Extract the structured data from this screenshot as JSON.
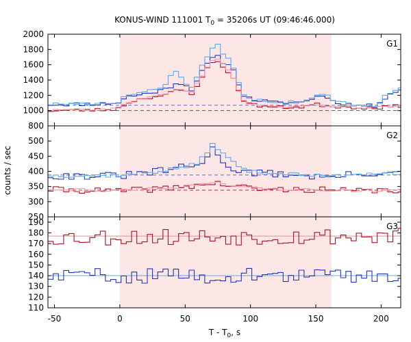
{
  "chart_data": {
    "type": "line",
    "title_main": "KONUS-WIND 111001 T",
    "title_sub": "0",
    "title_rest": " = 35206s UT (09:46:46.000)",
    "xlabel_main": "T - T",
    "xlabel_sub": "0",
    "xlabel_rest": ", s",
    "ylabel": "counts / sec",
    "xlim": [
      -55,
      215
    ],
    "xticks": [
      -50,
      0,
      50,
      100,
      150,
      200
    ],
    "shaded_interval": [
      0,
      162
    ],
    "colors": {
      "blue": "#2233bb",
      "red": "#aa1122",
      "lightblue": "#55aaee",
      "pink": "#ee99aa",
      "shade": "#fde6e6",
      "bg_blue": "#5566ee",
      "bg_red": "#cc2233",
      "g3_red_fit": "#ee8899",
      "g3_blue_fit": "#66aadd"
    },
    "panels": [
      {
        "label": "G1",
        "ylim": [
          800,
          2000
        ],
        "yticks": [
          800,
          1000,
          1200,
          1400,
          1600,
          1800,
          2000
        ],
        "background": {
          "blue": 1070,
          "red": 1000
        },
        "series": [
          {
            "color": "blue",
            "knots": [
              [
                -55,
                1080
              ],
              [
                -10,
                1090
              ],
              [
                0,
                1110
              ],
              [
                5,
                1180
              ],
              [
                20,
                1220
              ],
              [
                35,
                1280
              ],
              [
                45,
                1380
              ],
              [
                55,
                1280
              ],
              [
                62,
                1480
              ],
              [
                70,
                1680
              ],
              [
                75,
                1700
              ],
              [
                80,
                1620
              ],
              [
                85,
                1600
              ],
              [
                90,
                1400
              ],
              [
                95,
                1200
              ],
              [
                100,
                1150
              ],
              [
                120,
                1100
              ],
              [
                140,
                1110
              ],
              [
                150,
                1180
              ],
              [
                158,
                1200
              ],
              [
                163,
                1120
              ],
              [
                180,
                1070
              ],
              [
                195,
                1060
              ],
              [
                205,
                1200
              ],
              [
                215,
                1280
              ]
            ],
            "noise": 25,
            "step": 4,
            "seed": 11
          },
          {
            "color": "lightblue",
            "knots": [
              [
                -55,
                1085
              ],
              [
                -10,
                1095
              ],
              [
                0,
                1115
              ],
              [
                5,
                1200
              ],
              [
                20,
                1250
              ],
              [
                35,
                1330
              ],
              [
                42,
                1560
              ],
              [
                48,
                1400
              ],
              [
                55,
                1300
              ],
              [
                62,
                1560
              ],
              [
                70,
                1800
              ],
              [
                75,
                1860
              ],
              [
                80,
                1700
              ],
              [
                85,
                1660
              ],
              [
                90,
                1420
              ],
              [
                95,
                1220
              ],
              [
                100,
                1160
              ],
              [
                120,
                1110
              ],
              [
                140,
                1115
              ],
              [
                150,
                1190
              ],
              [
                158,
                1210
              ],
              [
                163,
                1130
              ],
              [
                180,
                1075
              ],
              [
                195,
                1065
              ],
              [
                205,
                1210
              ],
              [
                215,
                1290
              ]
            ],
            "noise": 20,
            "step": 4,
            "seed": 17
          },
          {
            "color": "red",
            "knots": [
              [
                -55,
                1000
              ],
              [
                -10,
                1010
              ],
              [
                0,
                1030
              ],
              [
                5,
                1100
              ],
              [
                20,
                1170
              ],
              [
                35,
                1200
              ],
              [
                45,
                1280
              ],
              [
                55,
                1220
              ],
              [
                62,
                1420
              ],
              [
                70,
                1620
              ],
              [
                75,
                1640
              ],
              [
                80,
                1560
              ],
              [
                85,
                1480
              ],
              [
                90,
                1300
              ],
              [
                95,
                1140
              ],
              [
                100,
                1080
              ],
              [
                120,
                1040
              ],
              [
                140,
                1050
              ],
              [
                150,
                1080
              ],
              [
                160,
                1060
              ],
              [
                180,
                1040
              ],
              [
                200,
                1040
              ],
              [
                215,
                1060
              ]
            ],
            "noise": 22,
            "step": 4,
            "seed": 23
          },
          {
            "color": "pink",
            "knots": [
              [
                -55,
                1005
              ],
              [
                -10,
                1012
              ],
              [
                0,
                1035
              ],
              [
                5,
                1105
              ],
              [
                20,
                1175
              ],
              [
                35,
                1210
              ],
              [
                45,
                1300
              ],
              [
                55,
                1230
              ],
              [
                62,
                1440
              ],
              [
                70,
                1650
              ],
              [
                75,
                1680
              ],
              [
                80,
                1580
              ],
              [
                85,
                1500
              ],
              [
                90,
                1310
              ],
              [
                95,
                1145
              ],
              [
                100,
                1085
              ],
              [
                120,
                1045
              ],
              [
                140,
                1052
              ],
              [
                150,
                1085
              ],
              [
                160,
                1062
              ],
              [
                180,
                1042
              ],
              [
                200,
                1042
              ],
              [
                215,
                1062
              ]
            ],
            "noise": 12,
            "step": 4,
            "seed": 29
          }
        ]
      },
      {
        "label": "G2",
        "ylim": [
          250,
          550
        ],
        "yticks": [
          250,
          300,
          350,
          400,
          450,
          500
        ],
        "background": {
          "blue": 388,
          "red": 338
        },
        "series": [
          {
            "color": "blue",
            "knots": [
              [
                -55,
                385
              ],
              [
                0,
                385
              ],
              [
                30,
                400
              ],
              [
                50,
                415
              ],
              [
                60,
                420
              ],
              [
                68,
                450
              ],
              [
                72,
                480
              ],
              [
                78,
                440
              ],
              [
                85,
                410
              ],
              [
                100,
                395
              ],
              [
                130,
                390
              ],
              [
                160,
                380
              ],
              [
                180,
                390
              ],
              [
                200,
                395
              ],
              [
                215,
                390
              ]
            ],
            "noise": 12,
            "step": 4,
            "seed": 31
          },
          {
            "color": "lightblue",
            "knots": [
              [
                -55,
                386
              ],
              [
                0,
                386
              ],
              [
                30,
                400
              ],
              [
                50,
                415
              ],
              [
                60,
                425
              ],
              [
                66,
                460
              ],
              [
                72,
                495
              ],
              [
                78,
                460
              ],
              [
                84,
                440
              ],
              [
                90,
                420
              ],
              [
                100,
                398
              ],
              [
                130,
                392
              ],
              [
                160,
                382
              ],
              [
                180,
                392
              ],
              [
                200,
                396
              ],
              [
                215,
                392
              ]
            ],
            "noise": 6,
            "step": 4,
            "seed": 37
          },
          {
            "color": "red",
            "knots": [
              [
                -55,
                340
              ],
              [
                0,
                335
              ],
              [
                40,
                345
              ],
              [
                60,
                355
              ],
              [
                75,
                360
              ],
              [
                90,
                350
              ],
              [
                110,
                340
              ],
              [
                150,
                340
              ],
              [
                180,
                335
              ],
              [
                215,
                338
              ]
            ],
            "noise": 10,
            "step": 4,
            "seed": 41
          },
          {
            "color": "pink",
            "knots": [
              [
                -55,
                342
              ],
              [
                0,
                337
              ],
              [
                40,
                347
              ],
              [
                60,
                356
              ],
              [
                75,
                362
              ],
              [
                90,
                352
              ],
              [
                110,
                342
              ],
              [
                150,
                341
              ],
              [
                180,
                336
              ],
              [
                215,
                339
              ]
            ],
            "noise": 5,
            "step": 4,
            "seed": 43
          }
        ]
      },
      {
        "label": "G3",
        "ylim": [
          110,
          195
        ],
        "yticks": [
          110,
          120,
          130,
          140,
          150,
          160,
          170,
          180,
          190
        ],
        "fits": {
          "red": 177,
          "blue": 140
        },
        "series": [
          {
            "color": "red",
            "knots": [
              [
                -55,
                176
              ],
              [
                215,
                177
              ]
            ],
            "noise": 8,
            "step": 4,
            "seed": 53
          },
          {
            "color": "blue",
            "knots": [
              [
                -55,
                140
              ],
              [
                215,
                140
              ]
            ],
            "noise": 7,
            "step": 4,
            "seed": 59
          }
        ]
      }
    ]
  }
}
